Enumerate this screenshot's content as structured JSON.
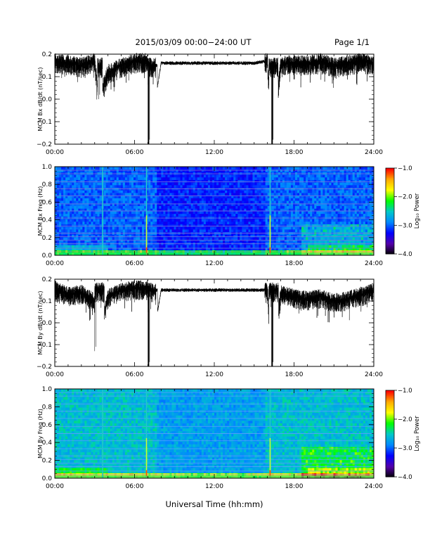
{
  "header": {
    "title": "2015/03/09  00:00−24:00 UT",
    "page": "Page 1/1"
  },
  "xlabel": "Universal Time (hh:mm)",
  "colorbar": {
    "label": "Log₁₀ Power",
    "ticks": [
      "−1.0",
      "−2.0",
      "−3.0",
      "−4.0"
    ],
    "tick_values": [
      -1.0,
      -2.0,
      -3.0,
      -4.0
    ],
    "colors": [
      "#ff0000",
      "#ffaa00",
      "#ffff00",
      "#00ff00",
      "#00c8c8",
      "#0088ff",
      "#0000ff",
      "#5500aa",
      "#000000"
    ]
  },
  "chart_data": [
    {
      "type": "line",
      "ylabel": "MCM Bx dB/dt (nT/sec)",
      "xlim": [
        "00:00",
        "24:00"
      ],
      "ylim": [
        -0.2,
        0.2
      ],
      "x_ticks": [
        "00:00",
        "06:00",
        "12:00",
        "18:00",
        "24:00"
      ],
      "y_ticks": [
        "0.2",
        "0.1",
        "0.0",
        "−0.1",
        "−0.2"
      ],
      "y_tick_values": [
        0.2,
        0.1,
        0.0,
        -0.1,
        -0.2
      ],
      "series": [
        {
          "x_hours": [
            0,
            1,
            2,
            3,
            3.3,
            4,
            5,
            6,
            7,
            7.05,
            8,
            9,
            10,
            11,
            12,
            13,
            14,
            15,
            16,
            16.35,
            17,
            18,
            19,
            20,
            21,
            22,
            23,
            24
          ],
          "values": [
            0.17,
            0.16,
            0.15,
            0.17,
            0.0,
            0.12,
            0.15,
            0.17,
            0.17,
            -0.2,
            0.16,
            0.16,
            0.16,
            0.16,
            0.16,
            0.16,
            0.16,
            0.16,
            0.17,
            -0.2,
            0.16,
            0.16,
            0.16,
            0.17,
            0.15,
            0.16,
            0.17,
            0.16
          ]
        }
      ],
      "gaps_hours": [
        7.05,
        16.35
      ]
    },
    {
      "type": "heatmap",
      "ylabel": "MCM Bx Freq (Hz)",
      "xlim": [
        "00:00",
        "24:00"
      ],
      "ylim": [
        0.0,
        1.0
      ],
      "x_ticks": [
        "00:00",
        "06:00",
        "12:00",
        "18:00",
        "24:00"
      ],
      "y_ticks": [
        "1.0",
        "0.8",
        "0.6",
        "0.4",
        "0.2",
        "0.0"
      ],
      "y_tick_values": [
        1.0,
        0.8,
        0.6,
        0.4,
        0.2,
        0.0
      ],
      "color_range": [
        -4.0,
        -1.0
      ],
      "harmonic_lines_hz": [
        0.04,
        0.08,
        0.13,
        0.17,
        0.21,
        0.25,
        0.33,
        0.42,
        0.5,
        0.58,
        0.67,
        0.75,
        0.83,
        0.92,
        0.96
      ],
      "spikes_hours": [
        3.6,
        6.9,
        16.2
      ]
    },
    {
      "type": "line",
      "ylabel": "MCM By dB/dt (nT/sec)",
      "xlim": [
        "00:00",
        "24:00"
      ],
      "ylim": [
        -0.2,
        0.2
      ],
      "x_ticks": [
        "00:00",
        "06:00",
        "12:00",
        "18:00",
        "24:00"
      ],
      "y_ticks": [
        "0.2",
        "0.1",
        "0.0",
        "−0.1",
        "−0.2"
      ],
      "y_tick_values": [
        0.2,
        0.1,
        0.0,
        -0.1,
        -0.2
      ],
      "series": [
        {
          "x_hours": [
            0,
            1,
            2,
            3,
            3.0,
            4,
            5,
            6,
            7,
            7.05,
            8,
            9,
            10,
            11,
            12,
            13,
            14,
            15,
            16,
            16.35,
            17,
            18,
            19,
            20,
            21,
            22,
            23,
            24
          ],
          "values": [
            0.16,
            0.13,
            0.14,
            0.1,
            -0.13,
            0.12,
            0.15,
            0.16,
            0.16,
            -0.2,
            0.15,
            0.15,
            0.15,
            0.15,
            0.15,
            0.15,
            0.15,
            0.15,
            0.15,
            -0.2,
            0.14,
            0.12,
            0.11,
            0.12,
            0.1,
            0.11,
            0.13,
            0.15
          ]
        }
      ],
      "gaps_hours": [
        7.05,
        16.35
      ]
    },
    {
      "type": "heatmap",
      "ylabel": "MCM By Freq (Hz)",
      "xlim": [
        "00:00",
        "24:00"
      ],
      "ylim": [
        0.0,
        1.0
      ],
      "x_ticks": [
        "00:00",
        "06:00",
        "12:00",
        "18:00",
        "24:00"
      ],
      "y_ticks": [
        "1.0",
        "0.8",
        "0.6",
        "0.4",
        "0.2",
        "0.0"
      ],
      "y_tick_values": [
        1.0,
        0.8,
        0.6,
        0.4,
        0.2,
        0.0
      ],
      "color_range": [
        -4.0,
        -1.0
      ],
      "harmonic_lines_hz": [
        0.04,
        0.08,
        0.13,
        0.17,
        0.21,
        0.25,
        0.33,
        0.42,
        0.5,
        0.58,
        0.67,
        0.75,
        0.83,
        0.92,
        0.96
      ],
      "spikes_hours": [
        3.6,
        6.9,
        16.2
      ]
    }
  ]
}
